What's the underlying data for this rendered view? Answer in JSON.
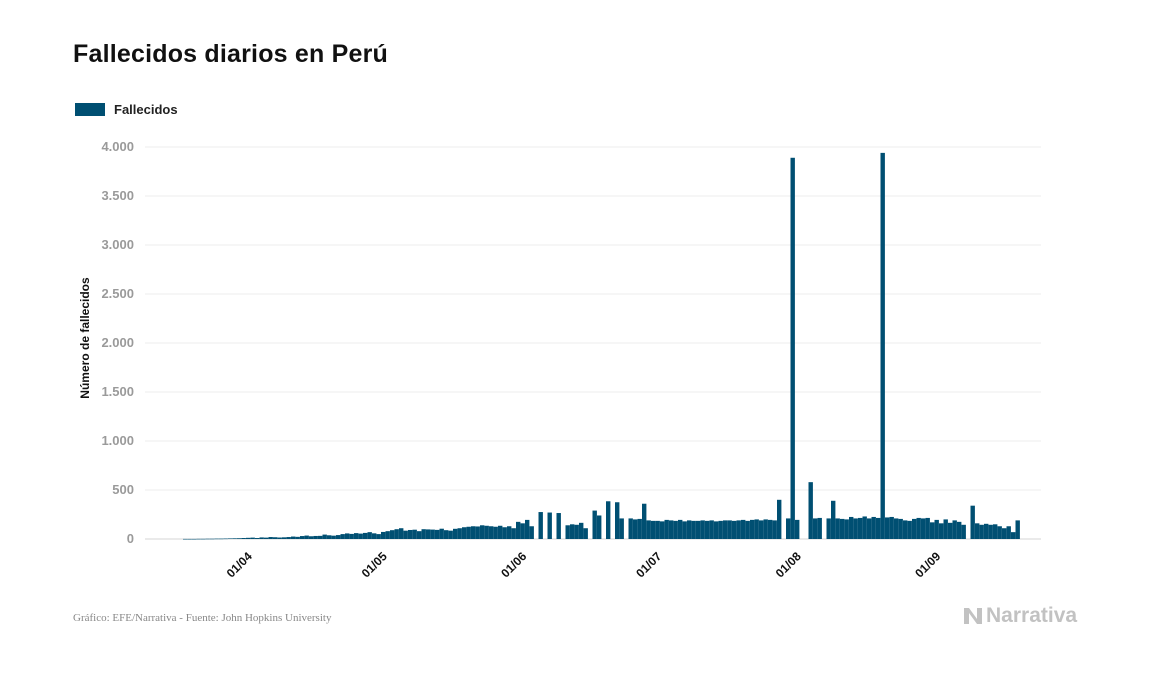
{
  "title": "Fallecidos diarios en Perú",
  "legend": {
    "label": "Fallecidos",
    "color": "#004f72"
  },
  "footer": {
    "source": "Gráfico: EFE/Narrativa - Fuente: John Hopkins University",
    "brand": "Narrativa"
  },
  "chart_data": {
    "type": "bar",
    "ylabel": "Número de fallecidos",
    "xlabel": "",
    "ylim": [
      0,
      4000
    ],
    "yticks": [
      0,
      500,
      1000,
      1500,
      2000,
      2500,
      3000,
      3500,
      4000
    ],
    "ytick_labels": [
      "0",
      "500",
      "1.000",
      "1.500",
      "2.000",
      "2.500",
      "3.000",
      "3.500",
      "4.000"
    ],
    "x_tick_labels": [
      {
        "label": "01/04",
        "index": 15
      },
      {
        "label": "01/05",
        "index": 45
      },
      {
        "label": "01/06",
        "index": 76
      },
      {
        "label": "01/07",
        "index": 106
      },
      {
        "label": "01/08",
        "index": 137
      },
      {
        "label": "01/09",
        "index": 168
      }
    ],
    "grid": true,
    "legend_position": "top-left",
    "series": [
      {
        "name": "Fallecidos",
        "color": "#004f72",
        "values": [
          1,
          1,
          1,
          2,
          2,
          3,
          3,
          4,
          4,
          5,
          6,
          7,
          8,
          10,
          12,
          14,
          10,
          16,
          14,
          20,
          18,
          15,
          17,
          20,
          25,
          22,
          30,
          35,
          28,
          31,
          32,
          45,
          38,
          34,
          40,
          50,
          57,
          52,
          60,
          55,
          62,
          70,
          58,
          50,
          72,
          80,
          90,
          100,
          110,
          85,
          92,
          95,
          80,
          100,
          98,
          96,
          93,
          105,
          90,
          85,
          104,
          110,
          120,
          125,
          130,
          128,
          140,
          135,
          130,
          125,
          135,
          120,
          130,
          110,
          175,
          160,
          195,
          130,
          0,
          275,
          0,
          270,
          0,
          265,
          0,
          140,
          150,
          145,
          165,
          110,
          0,
          290,
          240,
          0,
          385,
          0,
          375,
          210,
          0,
          210,
          200,
          205,
          360,
          190,
          185,
          185,
          180,
          195,
          190,
          185,
          195,
          180,
          190,
          185,
          185,
          190,
          185,
          190,
          180,
          185,
          190,
          190,
          185,
          190,
          195,
          185,
          195,
          200,
          190,
          200,
          195,
          190,
          400,
          0,
          210,
          3890,
          195,
          0,
          0,
          580,
          210,
          215,
          0,
          210,
          390,
          210,
          205,
          200,
          225,
          210,
          215,
          230,
          210,
          225,
          215,
          3940,
          220,
          225,
          210,
          205,
          190,
          185,
          205,
          215,
          210,
          215,
          170,
          195,
          160,
          200,
          165,
          190,
          175,
          145,
          0,
          340,
          160,
          145,
          155,
          145,
          150,
          130,
          110,
          130,
          70,
          190
        ]
      }
    ]
  }
}
